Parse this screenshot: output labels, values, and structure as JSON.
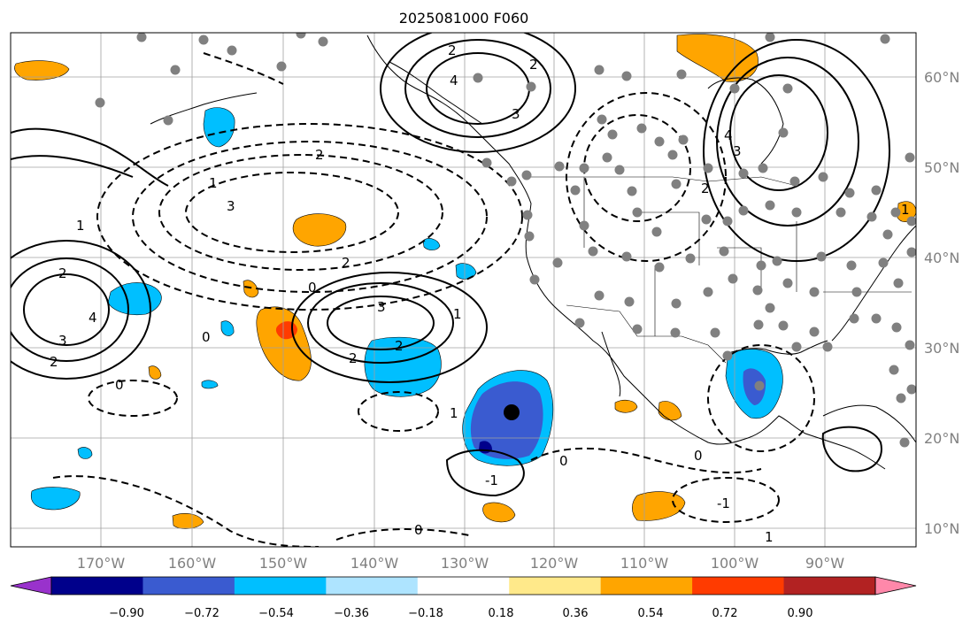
{
  "title": "2025081000 F060",
  "lat_labels": [
    "60°N",
    "50°N",
    "40°N",
    "30°N",
    "20°N",
    "10°N"
  ],
  "lon_labels": [
    "170°W",
    "160°W",
    "150°W",
    "140°W",
    "130°W",
    "120°W",
    "110°W",
    "100°W",
    "90°W"
  ],
  "colorbar": {
    "bins": [
      "#9932cc",
      "#00008b",
      "#3a5bd0",
      "#00bfff",
      "#aee4ff",
      "#ffffff",
      "#ffe98a",
      "#ffa500",
      "#ff3b00",
      "#b22222",
      "#ff88aa"
    ],
    "labels": [
      "−0.90",
      "−0.72",
      "−0.54",
      "−0.36",
      "−0.18",
      "0.18",
      "0.36",
      "0.54",
      "0.72",
      "0.90"
    ]
  },
  "contour_labels": [
    "2",
    "4",
    "3",
    "2",
    "1",
    "0",
    "1",
    "2",
    "3",
    "2",
    "4",
    "3",
    "2",
    "2",
    "3",
    "2",
    "1",
    "0",
    "2",
    "0",
    "1",
    "-1",
    "0",
    "1",
    "-1",
    "0",
    "2",
    "3",
    "4",
    "1",
    "0"
  ],
  "colors": {
    "frame": "#000000",
    "grid": "#a0a0a0",
    "station_dot": "#808080"
  }
}
